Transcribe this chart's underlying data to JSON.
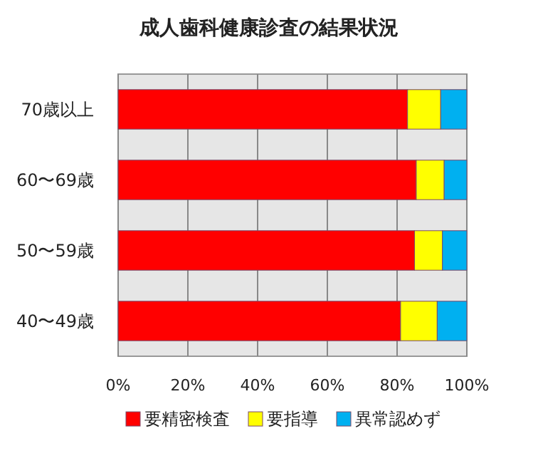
{
  "chart_data": {
    "type": "bar",
    "title": "成人歯科健康診査の結果状況",
    "orientation": "horizontal",
    "stacked": true,
    "categories": [
      "70歳以上",
      "60〜69歳",
      "50〜59歳",
      "40〜49歳"
    ],
    "series": [
      {
        "name": "要精密検査",
        "color": "#ff0000",
        "values": [
          83,
          85.5,
          85,
          81
        ]
      },
      {
        "name": "要指導",
        "color": "#ffff00",
        "values": [
          9.5,
          8,
          8,
          10.5
        ]
      },
      {
        "name": "異常認めず",
        "color": "#00b0f0",
        "values": [
          7.5,
          6.5,
          7,
          8.5
        ]
      }
    ],
    "xlim": [
      0,
      100
    ],
    "xticks": [
      {
        "value": 0,
        "label": "0%"
      },
      {
        "value": 20,
        "label": "20%"
      },
      {
        "value": 40,
        "label": "40%"
      },
      {
        "value": 60,
        "label": "60%"
      },
      {
        "value": 80,
        "label": "80%"
      },
      {
        "value": 100,
        "label": "100%"
      }
    ],
    "grid": "x",
    "legend": "bottom"
  }
}
